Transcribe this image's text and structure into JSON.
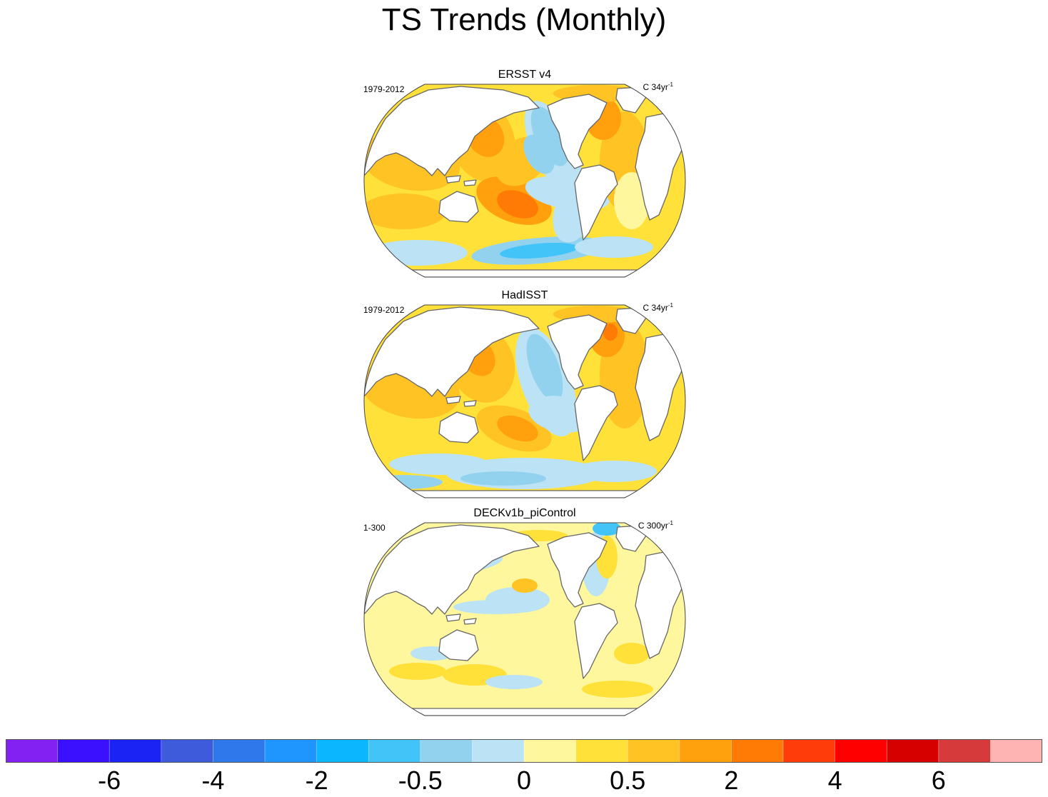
{
  "title": "TS Trends (Monthly)",
  "panels": [
    {
      "name": "ERSST v4",
      "period": "1979-2012",
      "units_prefix": "C 34yr",
      "units_exp": "-1",
      "pattern": "strong"
    },
    {
      "name": "HadISST",
      "period": "1979-2012",
      "units_prefix": "C 34yr",
      "units_exp": "-1",
      "pattern": "noisy"
    },
    {
      "name": "DECKv1b_piControl",
      "period": "1-300",
      "units_prefix": "C 300yr",
      "units_exp": "-1",
      "pattern": "weak"
    }
  ],
  "chart_data": {
    "type": "heatmap",
    "title": "TS Trends (Monthly)",
    "map_projection": "robinson-like, Pacific-centered",
    "colorbar": {
      "colors": [
        "#8221F2",
        "#3A10FF",
        "#1A23F4",
        "#3D5BDB",
        "#2E78EC",
        "#1E96FD",
        "#0BB6FE",
        "#42C4F9",
        "#93D2EE",
        "#BBE2F5",
        "#FFF79E",
        "#FFE13A",
        "#FFC424",
        "#FFA00C",
        "#FF7B05",
        "#FF3C0A",
        "#FF0000",
        "#D60000",
        "#D63A3A",
        "#FFB4B4"
      ],
      "labels": [
        "-6",
        "-4",
        "-2",
        "-0.5",
        "0",
        "0.5",
        "2",
        "4",
        "6"
      ],
      "label_boundaries": [
        2,
        4,
        6,
        8,
        10,
        12,
        14,
        16,
        18
      ]
    }
  }
}
